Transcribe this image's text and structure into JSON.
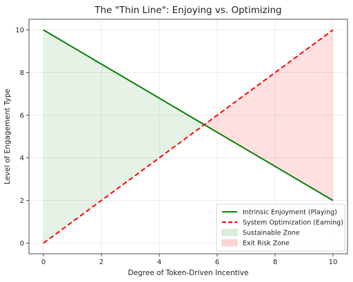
{
  "chart_data": {
    "type": "line",
    "title": "The \"Thin Line\": Enjoying vs. Optimizing",
    "xlabel": "Degree of Token-Driven Incentive",
    "ylabel": "Level of Engagement Type",
    "xlim": [
      -0.5,
      10.5
    ],
    "ylim": [
      -0.5,
      10.5
    ],
    "xticks": [
      0,
      2,
      4,
      6,
      8,
      10
    ],
    "yticks": [
      0,
      2,
      4,
      6,
      8,
      10
    ],
    "grid": true,
    "legend_position": "lower right",
    "series": [
      {
        "name": "Intrinsic Enjoyment (Playing)",
        "x": [
          0,
          10
        ],
        "y": [
          10,
          2
        ],
        "color": "#008000",
        "style": "solid"
      },
      {
        "name": "System Optimization (Earning)",
        "x": [
          0,
          10
        ],
        "y": [
          0,
          10
        ],
        "color": "#ff0000",
        "style": "dashed"
      }
    ],
    "regions": [
      {
        "name": "Sustainable Zone",
        "x_range": [
          0,
          5.556
        ],
        "color": "#008000",
        "alpha": 0.1
      },
      {
        "name": "Exit Risk Zone",
        "x_range": [
          5.556,
          10
        ],
        "color": "#ff0000",
        "alpha": 0.12
      }
    ]
  }
}
